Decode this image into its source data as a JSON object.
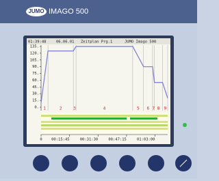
{
  "device": {
    "brand": "JUMO",
    "model": "IMAGO 500"
  },
  "screen_header": {
    "time": "01:39:48",
    "date": "06.06.01",
    "title": "Zeitplan Prg.1",
    "device": "JUMO Imago 500"
  },
  "chart_data": {
    "type": "line",
    "x": [
      0,
      230,
      1070,
      1160,
      3040,
      3400,
      3700,
      3760,
      4030,
      4200
    ],
    "series": [
      {
        "color": "#7a7ad8",
        "values": [
          10,
          125,
          125,
          135,
          135,
          90,
          90,
          55,
          55,
          20
        ]
      }
    ],
    "segments": [
      "1",
      "2",
      "3",
      "4",
      "5",
      "6",
      "7",
      "8",
      "9"
    ],
    "xlim": [
      0,
      4200
    ],
    "xticks": [
      0,
      {
        "value": 945,
        "label": "00:15:45"
      },
      {
        "value": 1890,
        "label": "00:31:30"
      },
      {
        "value": 2835,
        "label": "00:47:15"
      },
      {
        "value": 3780,
        "label": "01:03:00"
      }
    ],
    "ylim": [
      0,
      135
    ],
    "yticks": [
      {
        "value": 0,
        "label": "0."
      },
      {
        "value": 15,
        "label": "15."
      },
      {
        "value": 30,
        "label": "30."
      },
      {
        "value": 45,
        "label": "45."
      },
      {
        "value": 60,
        "label": "60."
      },
      {
        "value": 75,
        "label": "75."
      },
      {
        "value": 90,
        "label": "90."
      },
      {
        "value": 105,
        "label": "105."
      },
      {
        "value": 120,
        "label": "120."
      },
      {
        "value": 135,
        "label": "135."
      }
    ]
  }
}
